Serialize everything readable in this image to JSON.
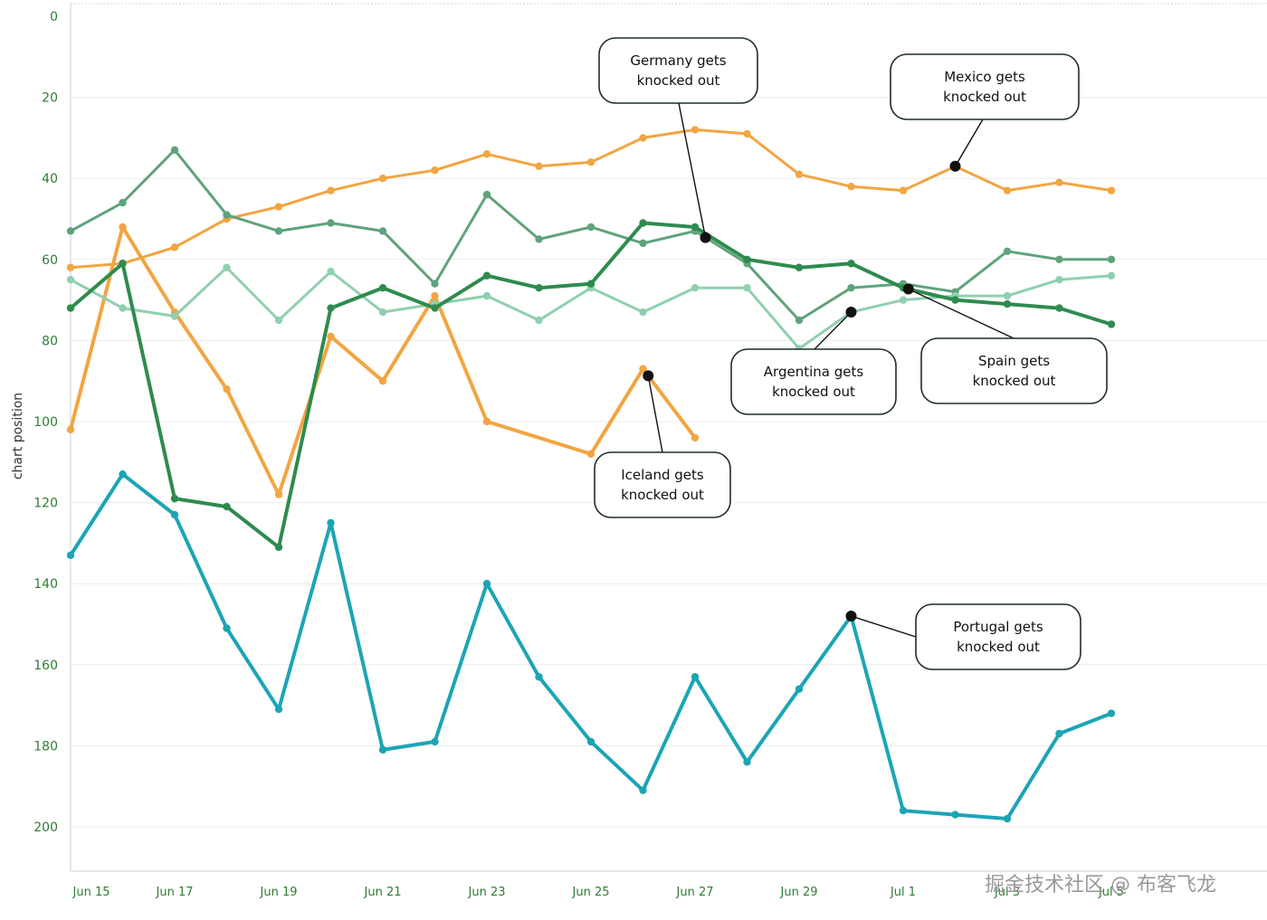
{
  "chart_data": {
    "type": "line",
    "ylabel": "chart position",
    "ylim": [
      0,
      210
    ],
    "y_inverted": true,
    "y_ticks": [
      0,
      20,
      40,
      60,
      80,
      100,
      120,
      140,
      160,
      180,
      200
    ],
    "x_tick_labels": [
      "Jun 15",
      "Jun 17",
      "Jun 19",
      "Jun 21",
      "Jun 23",
      "Jun 25",
      "Jun 27",
      "Jun 29",
      "Jul 1",
      "Jul 3",
      "Jul 5"
    ],
    "x_tick_days": [
      0.4,
      2,
      4,
      6,
      8,
      10,
      12,
      14,
      16,
      18,
      20
    ],
    "series": [
      {
        "name": "Mexico",
        "color": "#f2a541",
        "width": 3,
        "x": [
          0,
          1,
          2,
          3,
          4,
          5,
          6,
          7,
          8,
          9,
          10,
          11,
          12,
          13,
          14,
          15,
          16,
          17,
          18,
          19,
          20
        ],
        "values": [
          62,
          61,
          57,
          50,
          47,
          43,
          40,
          38,
          34,
          37,
          36,
          30,
          28,
          29,
          39,
          42,
          43,
          37,
          43,
          41,
          43
        ]
      },
      {
        "name": "Iceland",
        "color": "#f2a541",
        "width": 4,
        "x": [
          0,
          1,
          2,
          3,
          4,
          5,
          6,
          7,
          8,
          10,
          11,
          12
        ],
        "values": [
          102,
          52,
          73,
          92,
          118,
          79,
          90,
          69,
          100,
          108,
          87,
          104
        ]
      },
      {
        "name": "Germany",
        "color": "#5fa37b",
        "width": 3,
        "x": [
          0,
          1,
          2,
          3,
          4,
          5,
          6,
          7,
          8,
          9,
          10,
          11,
          12,
          13,
          14,
          15,
          16,
          17,
          18,
          19,
          20
        ],
        "values": [
          53,
          46,
          33,
          49,
          53,
          51,
          53,
          66,
          44,
          55,
          52,
          56,
          53,
          61,
          75,
          67,
          66,
          68,
          58,
          60,
          60
        ]
      },
      {
        "name": "Argentina",
        "color": "#8fd0af",
        "width": 3,
        "x": [
          0,
          1,
          2,
          3,
          4,
          5,
          6,
          7,
          8,
          9,
          10,
          11,
          12,
          13,
          14,
          15,
          16,
          17,
          18,
          19,
          20
        ],
        "values": [
          65,
          72,
          74,
          62,
          75,
          63,
          73,
          71,
          69,
          75,
          67,
          73,
          67,
          67,
          82,
          73,
          70,
          69,
          69,
          65,
          64
        ]
      },
      {
        "name": "Spain",
        "color": "#2e8b4e",
        "width": 4,
        "x": [
          0,
          1,
          2,
          3,
          4,
          5,
          6,
          7,
          8,
          9,
          10,
          11,
          12,
          13,
          14,
          15,
          16,
          17,
          18,
          19,
          20
        ],
        "values": [
          72,
          61,
          119,
          121,
          131,
          72,
          67,
          72,
          64,
          67,
          66,
          51,
          52,
          60,
          62,
          61,
          67,
          70,
          71,
          72,
          76
        ]
      },
      {
        "name": "Portugal",
        "color": "#1ba5b4",
        "width": 4,
        "x": [
          0,
          1,
          2,
          3,
          4,
          5,
          6,
          7,
          8,
          9,
          10,
          11,
          12,
          13,
          14,
          15,
          16,
          17,
          18,
          19,
          20
        ],
        "values": [
          133,
          113,
          123,
          151,
          171,
          125,
          181,
          179,
          140,
          163,
          179,
          191,
          163,
          184,
          166,
          148,
          196,
          197,
          198,
          177,
          172
        ]
      }
    ],
    "annotations": [
      {
        "label": "Germany gets knocked out",
        "line1": "Germany gets",
        "line2": "knocked out",
        "series": "Germany",
        "x": 12.2
      },
      {
        "label": "Mexico gets knocked out",
        "line1": "Mexico gets",
        "line2": "knocked out",
        "series": "Mexico",
        "x": 17
      },
      {
        "label": "Argentina gets knocked out",
        "line1": "Argentina gets",
        "line2": "knocked out",
        "series": "Argentina",
        "x": 15
      },
      {
        "label": "Spain gets knocked out",
        "line1": "Spain gets",
        "line2": "knocked out",
        "series": "Spain",
        "x": 16.1
      },
      {
        "label": "Iceland gets knocked out",
        "line1": "Iceland gets",
        "line2": "knocked out",
        "series": "Iceland",
        "x": 11.1
      },
      {
        "label": "Portugal gets knocked out",
        "line1": "Portugal gets",
        "line2": "knocked out",
        "series": "Portugal",
        "x": 15
      }
    ]
  },
  "watermark": "掘金技术社区 @ 布客飞龙"
}
